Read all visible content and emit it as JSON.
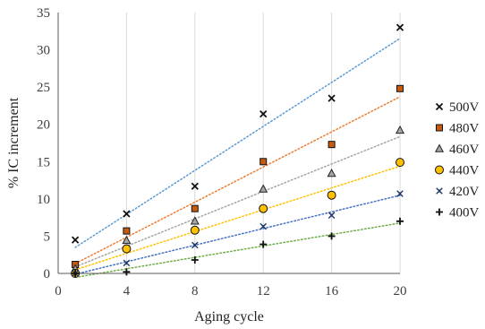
{
  "chart_data": {
    "type": "scatter",
    "title": "",
    "xlabel": "Aging cycle",
    "ylabel": "% IC increment",
    "xlim": [
      0,
      20
    ],
    "ylim": [
      0,
      35
    ],
    "xticks": [
      0,
      4,
      8,
      12,
      16,
      20
    ],
    "yticks": [
      0,
      5,
      10,
      15,
      20,
      25,
      30,
      35
    ],
    "grid": "vertical",
    "legend_position": "right",
    "trendlines": "linear, dotted",
    "series": [
      {
        "name": "500V",
        "marker": "x",
        "trend_color": "#5b9bd5",
        "x": [
          1,
          4,
          8,
          12,
          16,
          20
        ],
        "y": [
          4.5,
          8.0,
          11.7,
          21.4,
          23.5,
          33.0
        ]
      },
      {
        "name": "480V",
        "marker": "square",
        "trend_color": "#ed7d31",
        "x": [
          1,
          4,
          8,
          12,
          16,
          20
        ],
        "y": [
          1.2,
          5.7,
          8.7,
          15.0,
          17.3,
          24.8
        ]
      },
      {
        "name": "460V",
        "marker": "triangle",
        "trend_color": "#a5a5a5",
        "x": [
          1,
          4,
          8,
          12,
          16,
          20
        ],
        "y": [
          0.6,
          4.4,
          7.0,
          11.3,
          13.4,
          19.2
        ]
      },
      {
        "name": "440V",
        "marker": "circle",
        "trend_color": "#ffc000",
        "x": [
          1,
          4,
          8,
          12,
          16,
          20
        ],
        "y": [
          0.0,
          3.3,
          5.8,
          8.7,
          10.5,
          14.9
        ]
      },
      {
        "name": "420V",
        "marker": "star",
        "trend_color": "#4472c4",
        "x": [
          1,
          4,
          8,
          12,
          16,
          20
        ],
        "y": [
          0.0,
          1.4,
          3.8,
          6.3,
          7.8,
          10.7
        ]
      },
      {
        "name": "400V",
        "marker": "plus",
        "trend_color": "#70ad47",
        "x": [
          1,
          4,
          8,
          12,
          16,
          20
        ],
        "y": [
          0.0,
          0.2,
          1.8,
          3.9,
          5.0,
          7.0
        ]
      }
    ]
  }
}
